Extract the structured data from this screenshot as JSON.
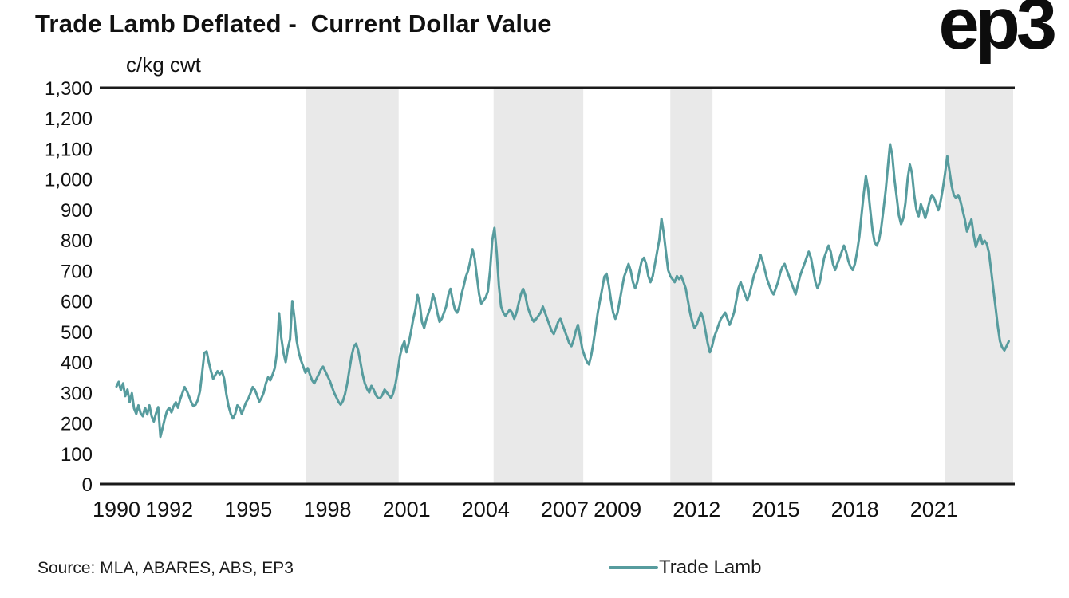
{
  "header": {
    "title": "Trade Lamb Deflated -  Current Dollar Value",
    "logo": "ep3"
  },
  "footer": {
    "source": "Source: MLA, ABARES, ABS, EP3"
  },
  "chart_data": {
    "type": "line",
    "title": "Trade Lamb Deflated -  Current Dollar Value",
    "ylabel": "c/kg cwt",
    "xlabel": "",
    "ylim": [
      0,
      1300
    ],
    "xlim": [
      1990,
      2024
    ],
    "grid": false,
    "legend_position": "bottom-center",
    "ytick_labels": [
      "0",
      "100",
      "200",
      "300",
      "400",
      "500",
      "600",
      "700",
      "800",
      "900",
      "1,000",
      "1,100",
      "1,200",
      "1,300"
    ],
    "ytick_values": [
      0,
      100,
      200,
      300,
      400,
      500,
      600,
      700,
      800,
      900,
      1000,
      1100,
      1200,
      1300
    ],
    "xticks": [
      1990,
      1992,
      1995,
      1998,
      2001,
      2004,
      2007,
      2009,
      2012,
      2015,
      2018,
      2021
    ],
    "shaded_bands_x": [
      [
        1997.2,
        2000.7
      ],
      [
        2004.3,
        2007.7
      ],
      [
        2011.0,
        2012.6
      ],
      [
        2021.4,
        2024.0
      ]
    ],
    "colors": {
      "band": "#e9e9e9",
      "axis": "#1a1a1a",
      "line": "#579c9e"
    },
    "series": [
      {
        "name": "Trade Lamb",
        "color": "#579c9e",
        "x_start": 1990.0,
        "points_per_year": 12,
        "values": [
          320,
          335,
          308,
          330,
          288,
          310,
          268,
          298,
          248,
          230,
          258,
          232,
          222,
          250,
          228,
          258,
          222,
          205,
          232,
          252,
          155,
          185,
          215,
          240,
          250,
          235,
          255,
          268,
          250,
          278,
          298,
          318,
          305,
          288,
          268,
          255,
          260,
          275,
          305,
          365,
          430,
          435,
          400,
          370,
          345,
          358,
          370,
          360,
          370,
          345,
          295,
          255,
          230,
          215,
          230,
          258,
          250,
          230,
          250,
          268,
          280,
          298,
          318,
          308,
          290,
          270,
          282,
          300,
          330,
          350,
          340,
          358,
          380,
          430,
          560,
          480,
          430,
          400,
          445,
          475,
          600,
          545,
          470,
          430,
          405,
          385,
          365,
          380,
          360,
          340,
          330,
          345,
          360,
          375,
          385,
          370,
          355,
          340,
          320,
          300,
          285,
          270,
          260,
          272,
          295,
          330,
          375,
          420,
          450,
          460,
          438,
          400,
          360,
          330,
          312,
          300,
          322,
          310,
          292,
          282,
          282,
          292,
          310,
          300,
          290,
          282,
          300,
          330,
          370,
          420,
          450,
          468,
          432,
          462,
          500,
          540,
          572,
          620,
          590,
          532,
          512,
          540,
          562,
          582,
          622,
          600,
          562,
          532,
          542,
          562,
          582,
          620,
          640,
          602,
          572,
          562,
          582,
          622,
          650,
          680,
          700,
          732,
          770,
          740,
          680,
          622,
          592,
          602,
          612,
          632,
          700,
          800,
          840,
          760,
          650,
          582,
          562,
          552,
          562,
          572,
          562,
          542,
          562,
          592,
          622,
          640,
          620,
          582,
          562,
          542,
          532,
          542,
          552,
          562,
          582,
          562,
          542,
          522,
          502,
          492,
          512,
          532,
          542,
          522,
          502,
          482,
          462,
          452,
          472,
          502,
          522,
          482,
          442,
          420,
          402,
          392,
          422,
          462,
          512,
          562,
          602,
          640,
          680,
          690,
          652,
          602,
          562,
          542,
          562,
          602,
          642,
          680,
          700,
          722,
          700,
          662,
          642,
          662,
          700,
          732,
          742,
          722,
          682,
          662,
          682,
          722,
          762,
          802,
          870,
          822,
          762,
          702,
          682,
          672,
          662,
          682,
          672,
          682,
          662,
          642,
          602,
          562,
          532,
          512,
          522,
          542,
          562,
          542,
          502,
          462,
          432,
          452,
          482,
          502,
          522,
          542,
          552,
          562,
          542,
          522,
          542,
          562,
          602,
          642,
          662,
          642,
          622,
          602,
          622,
          652,
          682,
          702,
          722,
          752,
          732,
          702,
          672,
          652,
          632,
          622,
          642,
          662,
          692,
          712,
          722,
          702,
          682,
          662,
          642,
          622,
          652,
          682,
          702,
          722,
          742,
          762,
          742,
          702,
          662,
          642,
          662,
          702,
          742,
          762,
          782,
          762,
          722,
          702,
          722,
          742,
          762,
          782,
          762,
          732,
          712,
          702,
          722,
          762,
          812,
          882,
          952,
          1010,
          968,
          898,
          832,
          792,
          782,
          802,
          842,
          902,
          962,
          1042,
          1115,
          1078,
          1000,
          942,
          882,
          852,
          872,
          922,
          1002,
          1048,
          1018,
          948,
          898,
          878,
          918,
          898,
          872,
          898,
          928,
          948,
          938,
          918,
          898,
          928,
          968,
          1018,
          1075,
          1028,
          978,
          948,
          938,
          948,
          928,
          898,
          868,
          828,
          848,
          868,
          818,
          778,
          798,
          818,
          788,
          798,
          788,
          758,
          698,
          638,
          578,
          518,
          468,
          448,
          438,
          452,
          468
        ]
      }
    ]
  }
}
